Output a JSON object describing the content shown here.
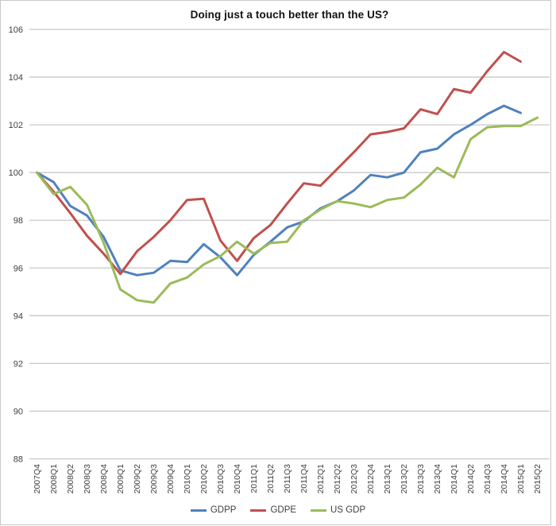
{
  "chart_data": {
    "type": "line",
    "title": "Doing just a touch better than the US?",
    "categories": [
      "2007Q4",
      "2008Q1",
      "2008Q2",
      "2008Q3",
      "2008Q4",
      "2009Q1",
      "2009Q2",
      "2009Q3",
      "2009Q4",
      "2010Q1",
      "2010Q2",
      "2010Q3",
      "2010Q4",
      "2011Q1",
      "2011Q2",
      "2011Q3",
      "2011Q4",
      "2012Q1",
      "2012Q2",
      "2012Q3",
      "2012Q4",
      "2013Q1",
      "2013Q2",
      "2013Q3",
      "2013Q4",
      "2014Q1",
      "2014Q2",
      "2014Q3",
      "2014Q4",
      "2015Q1",
      "2015Q2"
    ],
    "series": [
      {
        "name": "GDPP",
        "color": "#4F81BD",
        "values": [
          100,
          99.6,
          98.6,
          98.2,
          97.3,
          95.9,
          95.7,
          95.8,
          96.3,
          96.25,
          97.0,
          96.45,
          95.7,
          96.55,
          97.1,
          97.7,
          97.95,
          98.5,
          98.8,
          99.25,
          99.9,
          99.8,
          100.0,
          100.85,
          101.0,
          101.6,
          102.0,
          102.45,
          102.8,
          102.5,
          null
        ]
      },
      {
        "name": "GDPE",
        "color": "#C0504D",
        "values": [
          100,
          99.2,
          98.3,
          97.35,
          96.6,
          95.75,
          96.7,
          97.3,
          98.0,
          98.85,
          98.9,
          97.15,
          96.3,
          97.25,
          97.8,
          98.7,
          99.55,
          99.45,
          100.15,
          100.85,
          101.6,
          101.7,
          101.85,
          102.65,
          102.45,
          103.5,
          103.35,
          104.25,
          105.05,
          104.65,
          null
        ]
      },
      {
        "name": "US GDP",
        "color": "#9BBB59",
        "values": [
          100,
          99.1,
          99.4,
          98.65,
          97.05,
          95.1,
          94.65,
          94.55,
          95.35,
          95.6,
          96.15,
          96.5,
          97.1,
          96.6,
          97.05,
          97.1,
          98.0,
          98.45,
          98.8,
          98.7,
          98.55,
          98.85,
          98.95,
          99.5,
          100.2,
          99.8,
          101.4,
          101.9,
          101.95,
          101.95,
          102.3
        ]
      }
    ],
    "yticks": [
      88,
      90,
      92,
      94,
      96,
      98,
      100,
      102,
      104,
      106
    ],
    "ylim": [
      88,
      106
    ],
    "xlabel": "",
    "ylabel": "",
    "grid": "horizontal",
    "legend_position": "bottom",
    "gridline_color": "#C8C8C8",
    "tick_label_color": "#404040"
  }
}
